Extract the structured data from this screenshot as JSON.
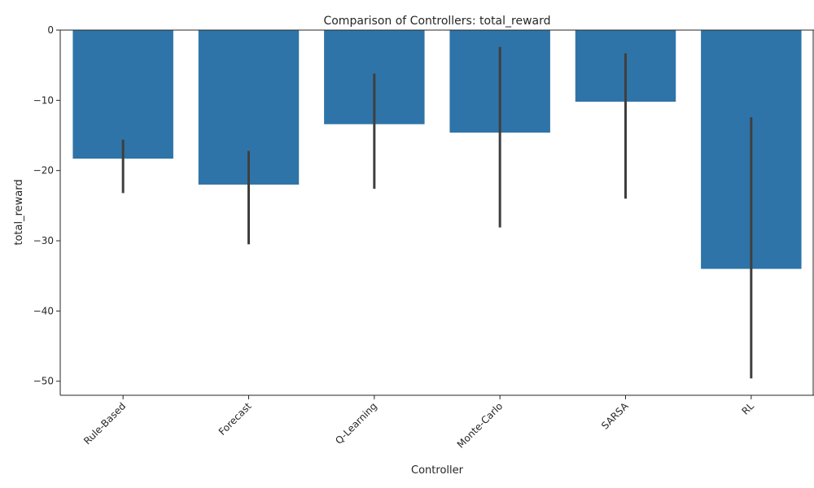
{
  "chart_data": {
    "type": "bar",
    "title": "Comparison of Controllers: total_reward",
    "xlabel": "Controller",
    "ylabel": "total_reward",
    "categories": [
      "Rule-Based",
      "Forecast",
      "Q-Learning",
      "Monte-Carlo",
      "SARSA",
      "RL"
    ],
    "values": [
      -18.3,
      -22.0,
      -13.4,
      -14.6,
      -10.2,
      -34.0
    ],
    "error_low": [
      -23.2,
      -30.5,
      -22.6,
      -28.1,
      -24.0,
      -49.6
    ],
    "error_high": [
      -15.6,
      -17.2,
      -6.2,
      -2.4,
      -3.3,
      -12.4
    ],
    "ylim": [
      -52,
      0
    ],
    "yticks": [
      0,
      -10,
      -20,
      -30,
      -40,
      -50
    ],
    "bar_color": "#2e74a8",
    "error_color": "#3f3f3f",
    "grid": false,
    "x_tick_rotation": 45
  }
}
